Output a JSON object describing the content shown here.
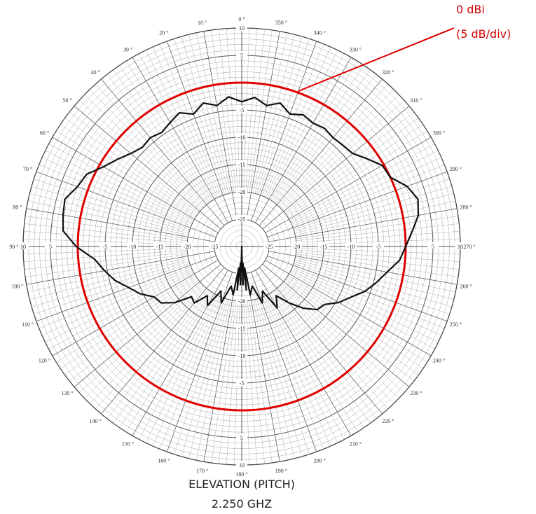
{
  "chart_data": {
    "type": "polar-line",
    "title": "ELEVATION (PITCH)",
    "subtitle": "2.250 GHZ",
    "reference": {
      "label_line1": "0 dBi",
      "label_line2": "(5 dB/div)",
      "value_db": 0,
      "color": "#e00000"
    },
    "radial_axis": {
      "min": -30,
      "max": 10,
      "step": 5,
      "unit": "dB"
    },
    "ring_labels": [
      "10",
      "5",
      "-5",
      "-10",
      "-15",
      "-20",
      "-25"
    ],
    "angle_labels": [
      "0 °",
      "10 °",
      "20 °",
      "30 °",
      "40 °",
      "50 °",
      "60 °",
      "70 °",
      "80 °",
      "90 °",
      "100 °",
      "110 °",
      "120 °",
      "130 °",
      "140 °",
      "150 °",
      "160 °",
      "170 °",
      "180 °",
      "190 °",
      "200 °",
      "210 °",
      "220 °",
      "230 °",
      "240 °",
      "250 °",
      "260 °",
      "270 °",
      "280 °",
      "290 °",
      "300 °",
      "310 °",
      "320 °",
      "330 °",
      "340 °",
      "350 °"
    ],
    "series": [
      {
        "color": "#111111",
        "angles_deg": [
          0,
          5,
          10,
          15,
          20,
          25,
          30,
          35,
          40,
          45,
          50,
          55,
          60,
          65,
          70,
          75,
          80,
          85,
          90,
          95,
          100,
          105,
          110,
          115,
          120,
          125,
          130,
          135,
          140,
          145,
          150,
          155,
          160,
          165,
          170,
          172,
          174,
          176,
          178,
          179,
          180,
          181,
          182,
          184,
          186,
          188,
          190,
          195,
          200,
          205,
          210,
          215,
          220,
          225,
          230,
          235,
          240,
          245,
          250,
          255,
          260,
          265,
          270,
          275,
          280,
          285,
          290,
          295,
          300,
          305,
          310,
          315,
          320,
          325,
          330,
          335,
          340,
          345,
          350,
          355
        ],
        "gain_db": [
          -3.5,
          -2.5,
          -3.8,
          -2.8,
          -4.2,
          -3.0,
          -3.8,
          -4.5,
          -4.0,
          -4.3,
          -3.5,
          -2.2,
          -0.8,
          1.3,
          2.0,
          3.5,
          3.2,
          2.8,
          0.3,
          -3.0,
          -4.5,
          -6.0,
          -8.0,
          -9.5,
          -11.5,
          -12.0,
          -14.0,
          -17.0,
          -16.5,
          -19.0,
          -17.5,
          -21.0,
          -19.0,
          -22.5,
          -21.0,
          -26.0,
          -22.0,
          -27.0,
          -23.0,
          -28.5,
          -30.0,
          -28.5,
          -23.0,
          -27.0,
          -22.0,
          -26.0,
          -21.0,
          -22.5,
          -19.0,
          -21.0,
          -17.0,
          -19.0,
          -16.5,
          -14.0,
          -12.0,
          -11.5,
          -9.5,
          -8.0,
          -6.0,
          -4.5,
          -3.0,
          -1.0,
          0.0,
          1.3,
          2.8,
          3.4,
          2.2,
          0.0,
          -0.3,
          -2.0,
          -3.5,
          -3.8,
          -4.0,
          -3.6,
          -3.9,
          -3.4,
          -4.2,
          -2.8,
          -3.8,
          -2.6
        ]
      }
    ]
  }
}
